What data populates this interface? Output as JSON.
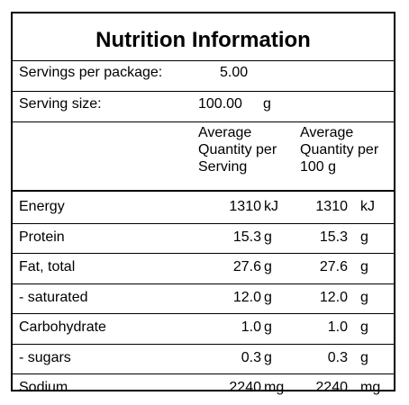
{
  "panel": {
    "title": "Nutrition Information",
    "servings_label": "Servings per package:",
    "servings_value": "5.00",
    "serving_size_label": "Serving size:",
    "serving_size_value": "100.00",
    "serving_size_unit": "g",
    "col_per_serving": "Average\nQuantity per\nServing",
    "col_per_100g": "Average\nQuantity per\n100 g",
    "rows": [
      {
        "name": "Energy",
        "serving": "1310",
        "serving_unit": "kJ",
        "per100": "1310",
        "per100_unit": "kJ"
      },
      {
        "name": "Protein",
        "serving": "15.3",
        "serving_unit": "g",
        "per100": "15.3",
        "per100_unit": "g"
      },
      {
        "name": "Fat, total",
        "serving": "27.6",
        "serving_unit": "g",
        "per100": "27.6",
        "per100_unit": "g"
      },
      {
        "name": "- saturated",
        "serving": "12.0",
        "serving_unit": "g",
        "per100": "12.0",
        "per100_unit": "g"
      },
      {
        "name": "Carbohydrate",
        "serving": "1.0",
        "serving_unit": "g",
        "per100": "1.0",
        "per100_unit": "g"
      },
      {
        "name": "- sugars",
        "serving": "0.3",
        "serving_unit": "g",
        "per100": "0.3",
        "per100_unit": "g"
      },
      {
        "name": "Sodium",
        "serving": "2240",
        "serving_unit": "mg",
        "per100": "2240",
        "per100_unit": "mg"
      }
    ]
  }
}
